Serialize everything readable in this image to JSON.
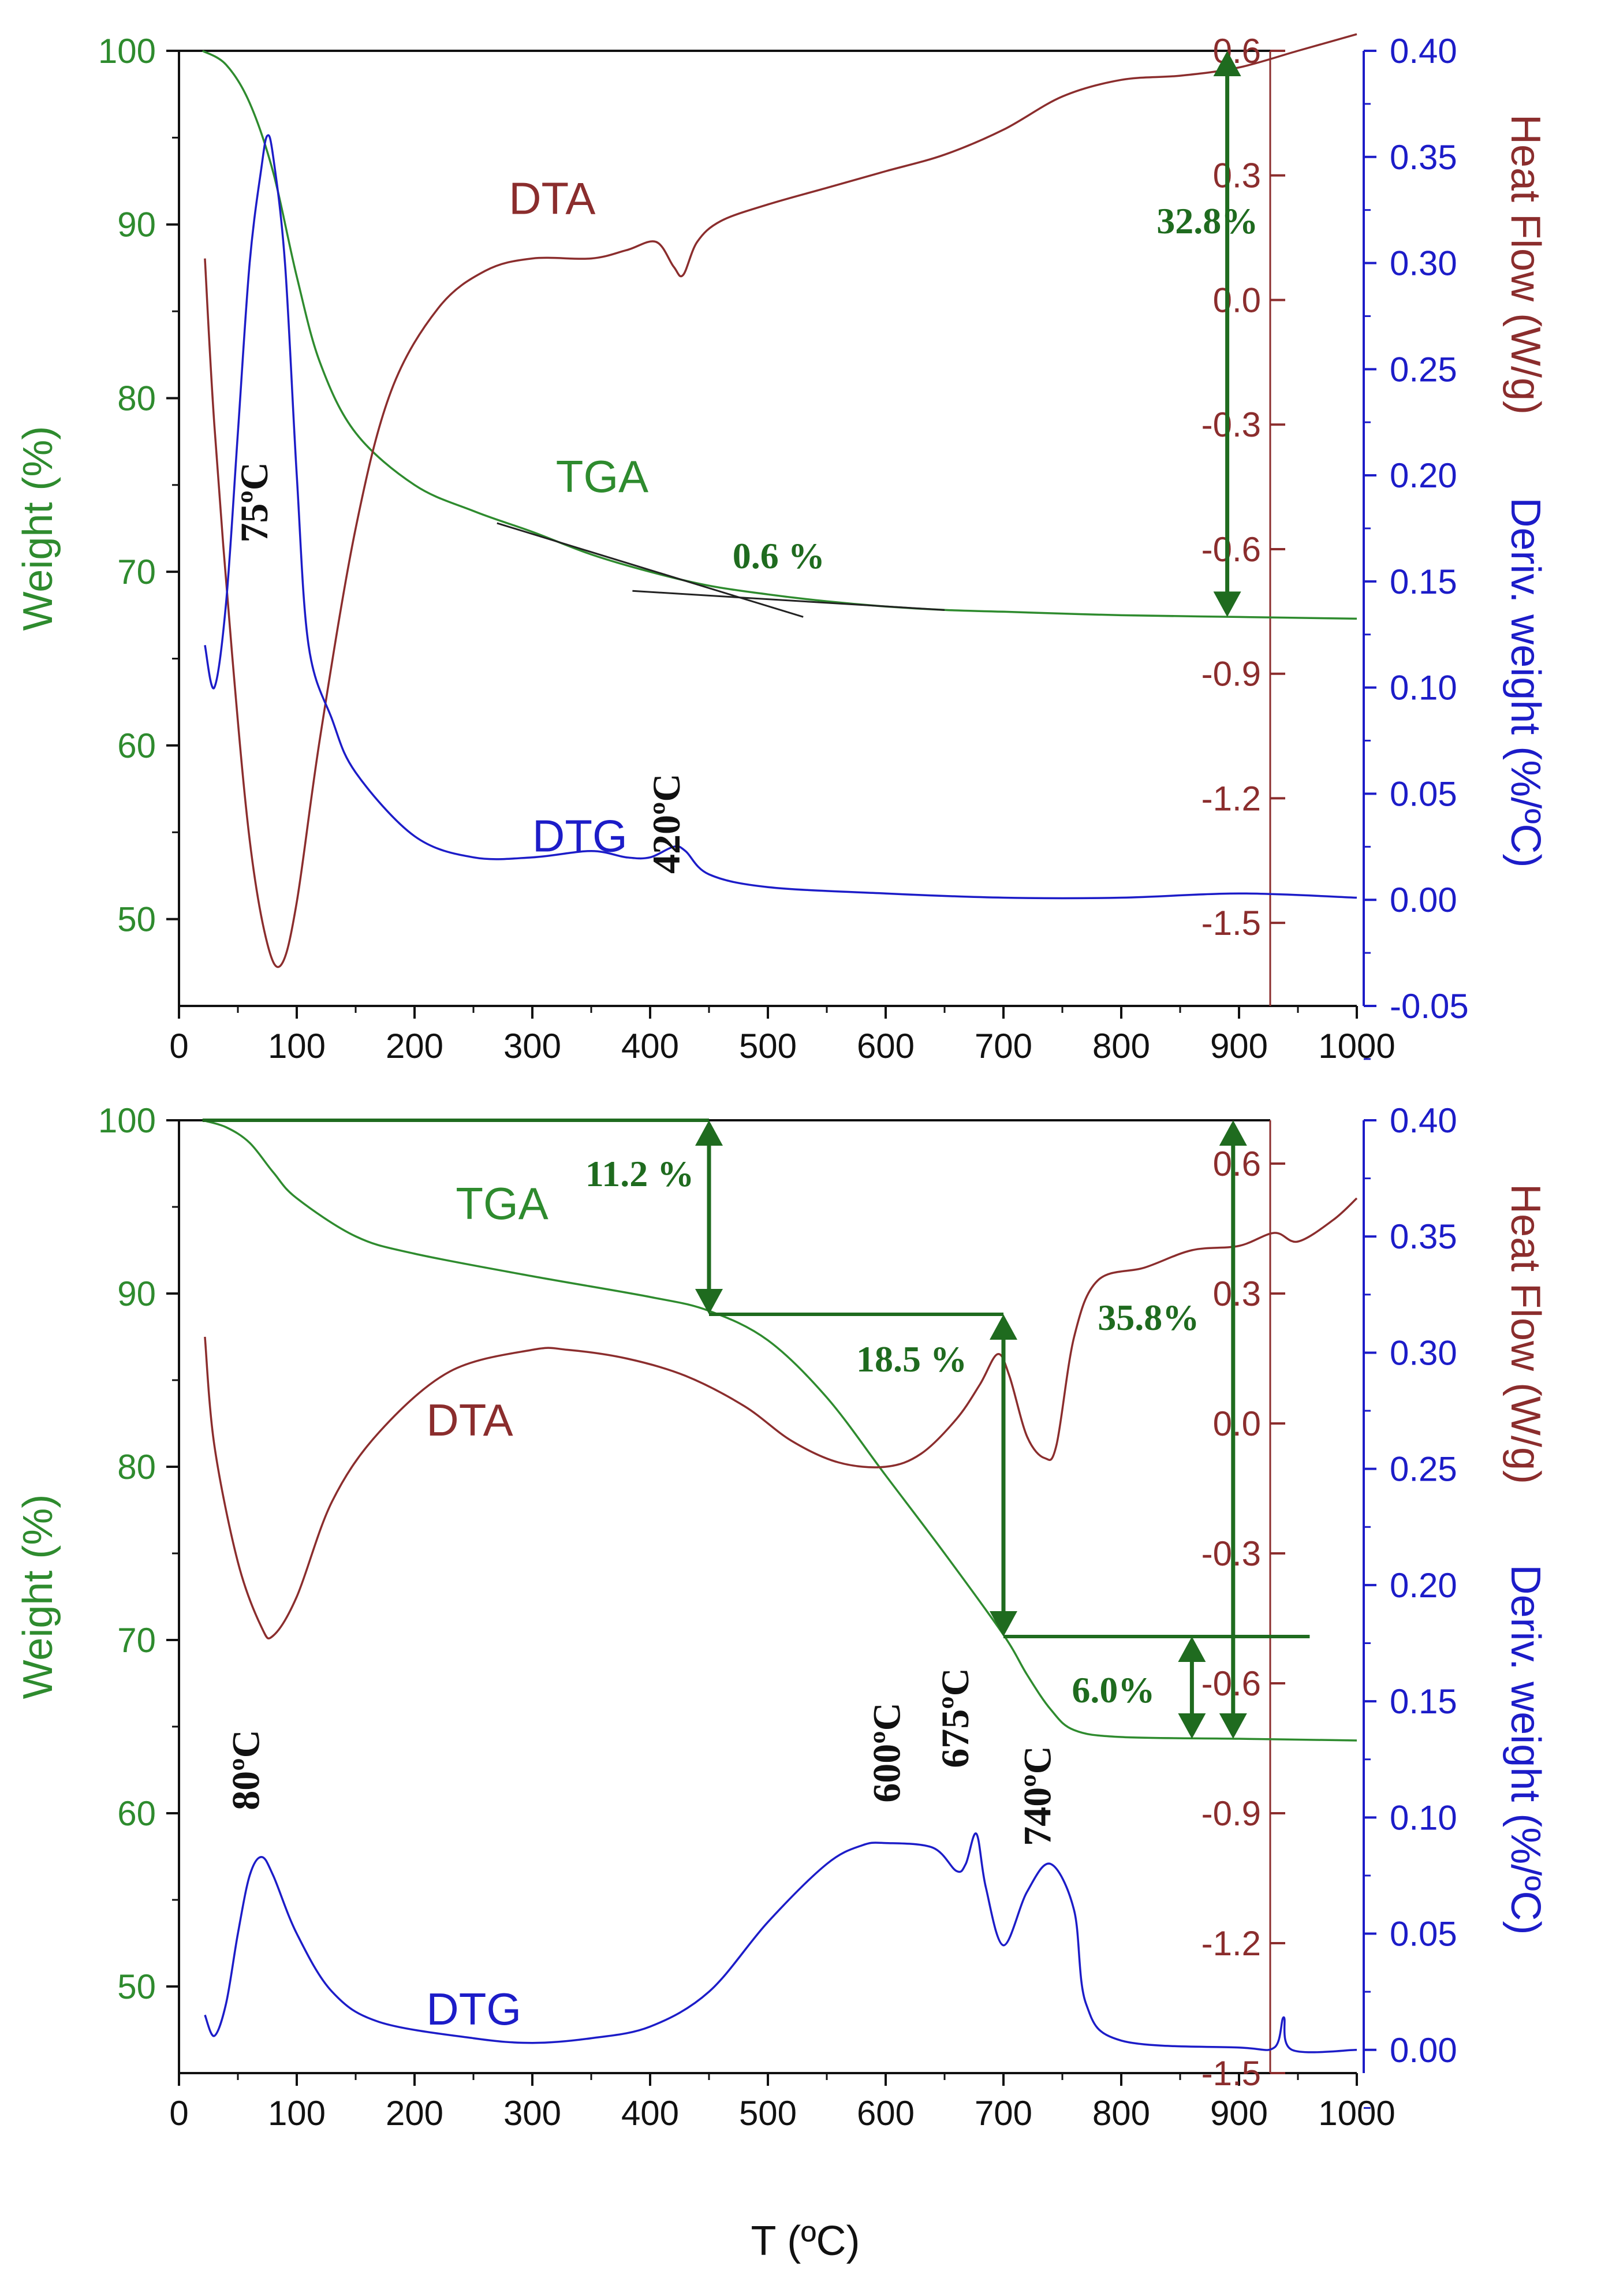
{
  "colors": {
    "tga": "#2e8b2e",
    "dta": "#8b2d2d",
    "dtg": "#1c1cc8",
    "arrow": "#1f6b1f",
    "axis": "#111111"
  },
  "xlabel": "T (ºC)",
  "left_axis_label": "Weight (%)",
  "right_axis_label_dta": "Heat Flow (W/g)",
  "right_axis_label_dtg": "Deriv. weight (%/ºC)",
  "chart_data": [
    {
      "type": "line",
      "panel": "top",
      "xlim": [
        0,
        1000
      ],
      "x_ticks": [
        "0",
        "100",
        "200",
        "300",
        "400",
        "500",
        "600",
        "700",
        "800",
        "900",
        "1000"
      ],
      "y_left": {
        "label": "Weight (%)",
        "range": [
          45,
          100
        ],
        "ticks": [
          "50",
          "60",
          "70",
          "80",
          "90",
          "100"
        ]
      },
      "y_right_dta": {
        "label": "Heat Flow (W/g)",
        "range": [
          -1.7,
          0.6
        ],
        "ticks": [
          "0.6",
          "0.3",
          "0.0",
          "-0.3",
          "-0.6",
          "-0.9",
          "-1.2",
          "-1.5"
        ]
      },
      "y_right_dtg": {
        "label": "Deriv. weight (%/ºC)",
        "range": [
          -0.05,
          0.4
        ],
        "ticks": [
          "0.40",
          "0.35",
          "0.30",
          "0.25",
          "0.20",
          "0.15",
          "0.10",
          "0.05",
          "0.00",
          "-0.05"
        ]
      },
      "series": [
        {
          "name": "TGA",
          "axis": "left",
          "x": [
            20,
            40,
            60,
            80,
            100,
            120,
            150,
            200,
            250,
            300,
            350,
            400,
            450,
            500,
            550,
            600,
            650,
            700,
            800,
            900,
            1000
          ],
          "y": [
            100,
            99.2,
            97,
            93,
            87,
            82,
            78,
            75,
            73.5,
            72.3,
            71,
            70,
            69.2,
            68.7,
            68.3,
            68,
            67.8,
            67.7,
            67.5,
            67.4,
            67.3
          ]
        },
        {
          "name": "DTA",
          "axis": "dta",
          "x": [
            22,
            30,
            45,
            60,
            75,
            87,
            100,
            120,
            150,
            180,
            220,
            260,
            300,
            350,
            380,
            405,
            420,
            428,
            440,
            460,
            500,
            550,
            600,
            650,
            700,
            750,
            800,
            850,
            900,
            950,
            1000
          ],
          "y": [
            0.1,
            -0.3,
            -0.85,
            -1.3,
            -1.55,
            -1.6,
            -1.45,
            -1.05,
            -0.55,
            -0.22,
            -0.02,
            0.07,
            0.1,
            0.1,
            0.12,
            0.14,
            0.08,
            0.06,
            0.14,
            0.19,
            0.23,
            0.27,
            0.31,
            0.35,
            0.41,
            0.49,
            0.53,
            0.54,
            0.56,
            0.6,
            0.64
          ]
        },
        {
          "name": "DTG",
          "axis": "dtg",
          "x": [
            22,
            30,
            40,
            50,
            60,
            70,
            75,
            80,
            90,
            100,
            110,
            130,
            150,
            200,
            250,
            300,
            350,
            380,
            400,
            420,
            430,
            450,
            500,
            600,
            700,
            800,
            900,
            1000
          ],
          "y": [
            0.12,
            0.1,
            0.14,
            0.22,
            0.3,
            0.345,
            0.36,
            0.35,
            0.3,
            0.2,
            0.12,
            0.085,
            0.06,
            0.03,
            0.02,
            0.02,
            0.023,
            0.02,
            0.02,
            0.025,
            0.023,
            0.012,
            0.006,
            0.003,
            0.001,
            0.001,
            0.003,
            0.001
          ]
        }
      ],
      "tangent_lines": [
        {
          "x": [
            270,
            530
          ],
          "y": [
            72.8,
            67.4
          ]
        },
        {
          "x": [
            385,
            650
          ],
          "y": [
            68.9,
            67.8
          ]
        }
      ],
      "arrows": [
        {
          "x": 890,
          "from": 100,
          "to": 67.4
        }
      ],
      "labels": {
        "tga": "TGA",
        "dta": "DTA",
        "dtg": "DTG"
      },
      "annotations": [
        {
          "text": "32.8%",
          "x": 830,
          "y": 89.5
        },
        {
          "text": "0.6 %",
          "x": 470,
          "y": 70.2
        }
      ],
      "peaks": [
        {
          "text": "75ºC",
          "x": 75,
          "y": 74
        },
        {
          "text": "420ºC",
          "x": 425,
          "y": 55.5
        }
      ]
    },
    {
      "type": "line",
      "panel": "bottom",
      "xlim": [
        0,
        1000
      ],
      "x_ticks": [
        "0",
        "100",
        "200",
        "300",
        "400",
        "500",
        "600",
        "700",
        "800",
        "900",
        "1000"
      ],
      "y_left": {
        "label": "Weight (%)",
        "range": [
          45,
          100
        ],
        "ticks": [
          "50",
          "60",
          "70",
          "80",
          "90",
          "100"
        ]
      },
      "y_right_dta": {
        "label": "Heat Flow (W/g)",
        "range": [
          -1.5,
          0.7
        ],
        "ticks": [
          "0.6",
          "0.3",
          "0.0",
          "-0.3",
          "-0.6",
          "-0.9",
          "-1.2",
          "-1.5"
        ]
      },
      "y_right_dtg": {
        "label": "Deriv. weight (%/ºC)",
        "range": [
          -0.01,
          0.4
        ],
        "ticks": [
          "0.40",
          "0.35",
          "0.30",
          "0.25",
          "0.20",
          "0.15",
          "0.10",
          "0.05",
          "0.00"
        ]
      },
      "series": [
        {
          "name": "TGA",
          "axis": "left",
          "x": [
            20,
            40,
            60,
            80,
            100,
            150,
            200,
            300,
            400,
            450,
            500,
            550,
            600,
            650,
            700,
            720,
            740,
            760,
            800,
            900,
            1000
          ],
          "y": [
            100,
            99.6,
            98.7,
            97,
            95.5,
            93.3,
            92.3,
            91,
            89.8,
            89,
            87.3,
            84,
            79.5,
            75,
            70.3,
            68,
            66,
            64.8,
            64.4,
            64.3,
            64.2
          ]
        },
        {
          "name": "DTA",
          "axis": "dta",
          "x": [
            22,
            30,
            50,
            70,
            80,
            100,
            130,
            170,
            230,
            300,
            330,
            380,
            430,
            480,
            520,
            560,
            600,
            630,
            660,
            680,
            695,
            705,
            720,
            735,
            745,
            760,
            780,
            820,
            860,
            900,
            930,
            950,
            980,
            1000
          ],
          "y": [
            0.2,
            -0.05,
            -0.32,
            -0.47,
            -0.49,
            -0.4,
            -0.18,
            -0.02,
            0.12,
            0.17,
            0.17,
            0.15,
            0.11,
            0.04,
            -0.04,
            -0.09,
            -0.1,
            -0.07,
            0.01,
            0.09,
            0.16,
            0.11,
            -0.03,
            -0.08,
            -0.05,
            0.2,
            0.33,
            0.36,
            0.4,
            0.41,
            0.44,
            0.42,
            0.47,
            0.52
          ]
        },
        {
          "name": "DTG",
          "axis": "dtg",
          "x": [
            22,
            30,
            40,
            50,
            60,
            70,
            80,
            100,
            130,
            170,
            250,
            300,
            350,
            400,
            450,
            500,
            550,
            580,
            600,
            640,
            660,
            668,
            677,
            685,
            700,
            720,
            740,
            760,
            770,
            800,
            900,
            930,
            938,
            945,
            1000
          ],
          "y": [
            0.015,
            0.006,
            0.02,
            0.05,
            0.075,
            0.083,
            0.075,
            0.05,
            0.025,
            0.012,
            0.005,
            0.003,
            0.005,
            0.01,
            0.025,
            0.055,
            0.08,
            0.088,
            0.089,
            0.087,
            0.077,
            0.08,
            0.093,
            0.07,
            0.045,
            0.068,
            0.08,
            0.06,
            0.02,
            0.004,
            0.001,
            0.001,
            0.014,
            0,
            0
          ]
        }
      ],
      "horizontal_refs": [
        {
          "x": [
            20,
            450
          ],
          "y": 100
        },
        {
          "x": [
            450,
            700
          ],
          "y": 88.8
        },
        {
          "x": [
            700,
            960
          ],
          "y": 70.2
        }
      ],
      "arrows": [
        {
          "x": 450,
          "from": 100,
          "to": 88.8
        },
        {
          "x": 700,
          "from": 88.8,
          "to": 70.2
        },
        {
          "x": 860,
          "from": 70.2,
          "to": 64.3
        },
        {
          "x": 895,
          "from": 100,
          "to": 64.3
        }
      ],
      "labels": {
        "tga": "TGA",
        "dta": "DTA",
        "dtg": "DTG"
      },
      "annotations": [
        {
          "text": "11.2 %",
          "x": 345,
          "y": 96.2
        },
        {
          "text": "18.5 %",
          "x": 575,
          "y": 85.5
        },
        {
          "text": "35.8%",
          "x": 780,
          "y": 87.9
        },
        {
          "text": "6.0%",
          "x": 758,
          "y": 66.4
        }
      ],
      "peaks": [
        {
          "text": "80ºC",
          "x": 68,
          "y": 62.5
        },
        {
          "text": "600ºC",
          "x": 612,
          "y": 63.5
        },
        {
          "text": "675ºC",
          "x": 670,
          "y": 65.5
        },
        {
          "text": "740ºC",
          "x": 740,
          "y": 61
        }
      ]
    }
  ]
}
